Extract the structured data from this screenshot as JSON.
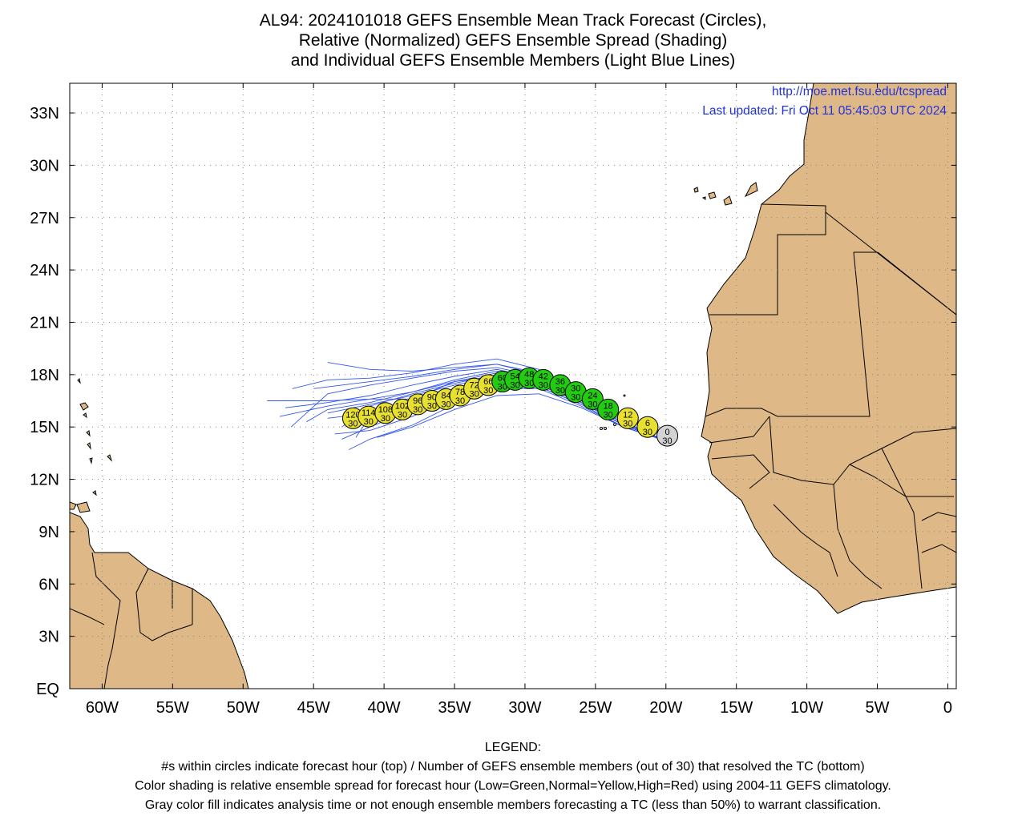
{
  "title": {
    "line1": "AL94: 2024101018 GEFS Ensemble Mean Track Forecast (Circles),",
    "line2": "Relative (Normalized) GEFS Ensemble Spread (Shading)",
    "line3": "and Individual GEFS Ensemble Members (Light Blue Lines)"
  },
  "credit": {
    "url": "http://moe.met.fsu.edu/tcspread",
    "updated": "Last updated: Fri Oct 11 05:45:03 UTC 2024"
  },
  "axes": {
    "lat_labels": [
      "33N",
      "30N",
      "27N",
      "24N",
      "21N",
      "18N",
      "15N",
      "12N",
      "9N",
      "6N",
      "3N",
      "EQ"
    ],
    "lat_values": [
      33,
      30,
      27,
      24,
      21,
      18,
      15,
      12,
      9,
      6,
      3,
      0
    ],
    "lon_labels": [
      "60W",
      "55W",
      "50W",
      "45W",
      "40W",
      "35W",
      "30W",
      "25W",
      "20W",
      "15W",
      "10W",
      "5W",
      "0"
    ],
    "lon_values": [
      -60,
      -55,
      -50,
      -45,
      -40,
      -35,
      -30,
      -25,
      -20,
      -15,
      -10,
      -5,
      0
    ],
    "lon_range": [
      -62.3,
      0.6
    ],
    "lat_range": [
      0,
      34.7
    ],
    "grid": "dotted"
  },
  "colors": {
    "land": "#deb887",
    "ocean": "#ffffff",
    "member_track": "#3355ee",
    "low_spread": "#22cc11",
    "normal_spread": "#e8e030",
    "analysis": "#d3d3d3"
  },
  "track": [
    {
      "hour": "0",
      "members": "30",
      "lon": -19.9,
      "lat": 14.5,
      "color": "gray"
    },
    {
      "hour": "6",
      "members": "30",
      "lon": -21.3,
      "lat": 15.0,
      "color": "yellow"
    },
    {
      "hour": "12",
      "members": "30",
      "lon": -22.7,
      "lat": 15.5,
      "color": "yellow"
    },
    {
      "hour": "18",
      "members": "30",
      "lon": -24.1,
      "lat": 16.0,
      "color": "green"
    },
    {
      "hour": "24",
      "members": "30",
      "lon": -25.2,
      "lat": 16.6,
      "color": "green"
    },
    {
      "hour": "30",
      "members": "30",
      "lon": -26.4,
      "lat": 17.0,
      "color": "green"
    },
    {
      "hour": "36",
      "members": "30",
      "lon": -27.5,
      "lat": 17.4,
      "color": "green"
    },
    {
      "hour": "42",
      "members": "30",
      "lon": -28.7,
      "lat": 17.7,
      "color": "green"
    },
    {
      "hour": "48",
      "members": "30",
      "lon": -29.7,
      "lat": 17.8,
      "color": "green"
    },
    {
      "hour": "54",
      "members": "30",
      "lon": -30.7,
      "lat": 17.7,
      "color": "green"
    },
    {
      "hour": "60",
      "members": "30",
      "lon": -31.6,
      "lat": 17.6,
      "color": "green"
    },
    {
      "hour": "66",
      "members": "30",
      "lon": -32.6,
      "lat": 17.4,
      "color": "yellow"
    },
    {
      "hour": "72",
      "members": "30",
      "lon": -33.6,
      "lat": 17.2,
      "color": "yellow"
    },
    {
      "hour": "78",
      "members": "30",
      "lon": -34.6,
      "lat": 16.8,
      "color": "yellow"
    },
    {
      "hour": "84",
      "members": "30",
      "lon": -35.6,
      "lat": 16.6,
      "color": "yellow"
    },
    {
      "hour": "90",
      "members": "30",
      "lon": -36.6,
      "lat": 16.5,
      "color": "yellow"
    },
    {
      "hour": "96",
      "members": "30",
      "lon": -37.6,
      "lat": 16.3,
      "color": "yellow"
    },
    {
      "hour": "102",
      "members": "30",
      "lon": -38.7,
      "lat": 16.0,
      "color": "yellow"
    },
    {
      "hour": "108",
      "members": "30",
      "lon": -39.9,
      "lat": 15.8,
      "color": "yellow"
    },
    {
      "hour": "114",
      "members": "30",
      "lon": -41.1,
      "lat": 15.6,
      "color": "yellow"
    },
    {
      "hour": "120",
      "members": "30",
      "lon": -42.2,
      "lat": 15.5,
      "color": "yellow"
    }
  ],
  "member_tracks": [
    [
      [
        -20,
        14.2
      ],
      [
        -23,
        15.0
      ],
      [
        -26,
        16.3
      ],
      [
        -29,
        17.3
      ],
      [
        -32,
        17.6
      ],
      [
        -35,
        17.0
      ],
      [
        -38,
        16.3
      ],
      [
        -41,
        15.8
      ],
      [
        -44,
        15.5
      ]
    ],
    [
      [
        -20,
        14.2
      ],
      [
        -23,
        15.2
      ],
      [
        -26,
        16.6
      ],
      [
        -29,
        17.8
      ],
      [
        -32,
        18.3
      ],
      [
        -35,
        17.9
      ],
      [
        -38,
        17.4
      ],
      [
        -41,
        16.8
      ],
      [
        -44,
        16.4
      ],
      [
        -47,
        16.1
      ]
    ],
    [
      [
        -20,
        14.2
      ],
      [
        -23,
        15.1
      ],
      [
        -26,
        16.5
      ],
      [
        -29,
        17.6
      ],
      [
        -32,
        17.8
      ],
      [
        -35,
        17.1
      ],
      [
        -38,
        16.0
      ],
      [
        -41,
        15.0
      ],
      [
        -43,
        14.3
      ]
    ],
    [
      [
        -20,
        14.2
      ],
      [
        -23,
        15.3
      ],
      [
        -26,
        16.8
      ],
      [
        -29,
        18.1
      ],
      [
        -32,
        18.6
      ],
      [
        -35,
        18.3
      ],
      [
        -38,
        17.9
      ],
      [
        -41,
        17.6
      ],
      [
        -45,
        17.2
      ]
    ],
    [
      [
        -20,
        14.2
      ],
      [
        -23,
        15.0
      ],
      [
        -26,
        16.2
      ],
      [
        -29,
        17.2
      ],
      [
        -32,
        17.2
      ],
      [
        -35,
        16.3
      ],
      [
        -38,
        15.1
      ],
      [
        -41,
        14.3
      ],
      [
        -42.5,
        13.7
      ]
    ],
    [
      [
        -20,
        14.2
      ],
      [
        -23,
        15.1
      ],
      [
        -26,
        16.4
      ],
      [
        -29,
        17.5
      ],
      [
        -32,
        17.9
      ],
      [
        -35,
        17.6
      ],
      [
        -38,
        17.0
      ],
      [
        -41,
        16.6
      ],
      [
        -44,
        16.5
      ],
      [
        -48.3,
        16.5
      ]
    ],
    [
      [
        -20,
        14.2
      ],
      [
        -23,
        15.2
      ],
      [
        -26,
        16.7
      ],
      [
        -29,
        17.9
      ],
      [
        -32,
        18.4
      ],
      [
        -35,
        18.2
      ],
      [
        -38,
        17.8
      ],
      [
        -41,
        17.4
      ],
      [
        -44,
        16.9
      ],
      [
        -46.6,
        15.0
      ]
    ],
    [
      [
        -20,
        14.2
      ],
      [
        -23,
        15.1
      ],
      [
        -26,
        16.4
      ],
      [
        -29,
        17.4
      ],
      [
        -32,
        17.4
      ],
      [
        -35,
        16.6
      ],
      [
        -38,
        15.6
      ],
      [
        -41,
        14.8
      ],
      [
        -43.5,
        14.6
      ]
    ],
    [
      [
        -20,
        14.2
      ],
      [
        -23,
        15.3
      ],
      [
        -26,
        16.9
      ],
      [
        -29,
        18.3
      ],
      [
        -32,
        18.9
      ],
      [
        -35,
        18.6
      ],
      [
        -38,
        18.1
      ],
      [
        -41,
        17.8
      ],
      [
        -44,
        17.7
      ],
      [
        -46.5,
        17.2
      ]
    ],
    [
      [
        -20,
        14.2
      ],
      [
        -23,
        15.0
      ],
      [
        -26,
        16.3
      ],
      [
        -29,
        17.3
      ],
      [
        -32,
        17.4
      ],
      [
        -35,
        16.9
      ],
      [
        -38,
        16.6
      ],
      [
        -41,
        16.6
      ],
      [
        -44,
        16.2
      ],
      [
        -47.4,
        15.6
      ]
    ],
    [
      [
        -20,
        14.2
      ],
      [
        -23,
        15.2
      ],
      [
        -26,
        16.6
      ],
      [
        -29,
        17.7
      ],
      [
        -32,
        18.0
      ],
      [
        -35,
        17.5
      ],
      [
        -38,
        16.9
      ],
      [
        -41,
        16.2
      ],
      [
        -43,
        15.0
      ]
    ],
    [
      [
        -20,
        14.2
      ],
      [
        -23,
        15.1
      ],
      [
        -26,
        16.5
      ],
      [
        -29,
        17.7
      ],
      [
        -32,
        18.1
      ],
      [
        -35,
        17.6
      ],
      [
        -38,
        16.6
      ],
      [
        -41,
        15.6
      ],
      [
        -42,
        14.4
      ]
    ],
    [
      [
        -20,
        14.2
      ],
      [
        -23,
        15.2
      ],
      [
        -26,
        16.7
      ],
      [
        -29,
        18.0
      ],
      [
        -32,
        18.6
      ],
      [
        -35,
        18.4
      ],
      [
        -38,
        18.2
      ],
      [
        -41,
        18.3
      ],
      [
        -44,
        18.7
      ]
    ],
    [
      [
        -20,
        14.2
      ],
      [
        -23,
        15.0
      ],
      [
        -26,
        16.1
      ],
      [
        -29,
        16.9
      ],
      [
        -32,
        16.8
      ],
      [
        -35,
        16.0
      ],
      [
        -38,
        15.0
      ],
      [
        -40.5,
        14.4
      ]
    ],
    [
      [
        -20,
        14.2
      ],
      [
        -23,
        15.1
      ],
      [
        -26,
        16.5
      ],
      [
        -29,
        17.6
      ],
      [
        -32,
        17.9
      ],
      [
        -35,
        17.4
      ],
      [
        -38,
        16.8
      ],
      [
        -41,
        16.3
      ],
      [
        -44,
        15.8
      ]
    ],
    [
      [
        -20,
        14.2
      ],
      [
        -23,
        15.2
      ],
      [
        -26,
        16.6
      ],
      [
        -29,
        17.8
      ],
      [
        -32,
        18.2
      ],
      [
        -35,
        17.7
      ],
      [
        -38,
        17.0
      ],
      [
        -41,
        16.4
      ],
      [
        -44,
        16.0
      ],
      [
        -45.5,
        15.3
      ]
    ]
  ],
  "legend": {
    "heading": "LEGEND:",
    "line1": "#s within circles indicate forecast hour (top) / Number of GEFS ensemble members (out of 30) that resolved the TC (bottom)",
    "line2": "Color shading is relative ensemble spread for forecast hour (Low=Green,Normal=Yellow,High=Red) using 2004-11 GEFS climatology.",
    "line3": "Gray color fill indicates analysis time or not enough ensemble members forecasting a TC (less than 50%) to warrant classification."
  }
}
